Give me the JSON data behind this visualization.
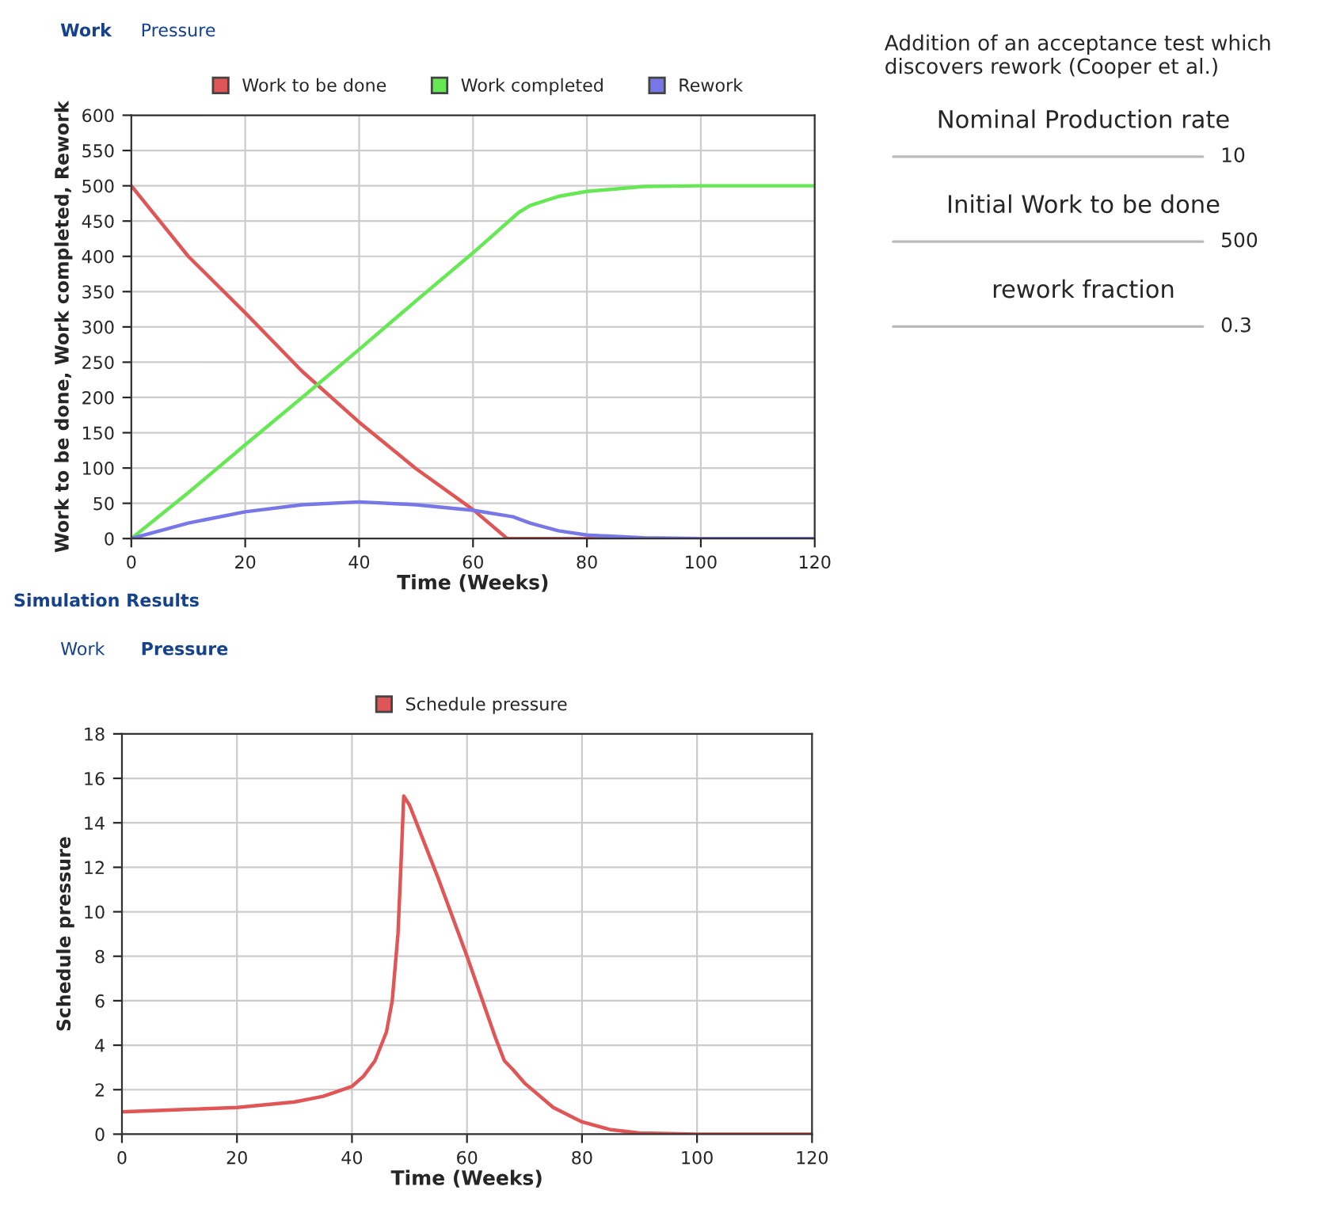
{
  "chart_data": [
    {
      "type": "line",
      "annotations": [
        "Work",
        "Pressure"
      ],
      "xlabel": "Time (Weeks)",
      "ylabel": "Work to be done, Work completed, Rework",
      "xlim": [
        0,
        120
      ],
      "xticks": [
        0,
        20,
        40,
        60,
        80,
        100,
        120
      ],
      "ylim": [
        0,
        600
      ],
      "yticks": [
        0,
        50,
        100,
        150,
        200,
        250,
        300,
        350,
        400,
        450,
        500,
        550,
        600
      ],
      "grid": true,
      "legend": "top",
      "series": [
        {
          "name": "Work to be done",
          "color": "#e05555",
          "x": [
            0,
            10,
            20,
            30,
            40,
            50,
            60,
            66,
            80,
            100,
            120
          ],
          "values": [
            500,
            400,
            320,
            237,
            165,
            99,
            41,
            0,
            0,
            0,
            0
          ]
        },
        {
          "name": "Work completed",
          "color": "#66e855",
          "x": [
            0,
            10,
            20,
            30,
            40,
            50,
            60,
            68,
            70,
            75,
            80,
            90,
            100,
            120
          ],
          "values": [
            0,
            65,
            133,
            200,
            268,
            337,
            405,
            462,
            472,
            485,
            492,
            499,
            500,
            500
          ]
        },
        {
          "name": "Rework",
          "color": "#7777e8",
          "x": [
            0,
            10,
            20,
            30,
            40,
            50,
            60,
            67,
            70,
            75,
            80,
            90,
            100,
            120
          ],
          "values": [
            0,
            22,
            38,
            48,
            52,
            48,
            40,
            31,
            22,
            11,
            5,
            1,
            0,
            0
          ]
        }
      ]
    },
    {
      "type": "line",
      "annotations": [
        "Simulation Results",
        "Work",
        "Pressure"
      ],
      "xlabel": "Time (Weeks)",
      "ylabel": "Schedule pressure",
      "xlim": [
        0,
        120
      ],
      "xticks": [
        0,
        20,
        40,
        60,
        80,
        100,
        120
      ],
      "ylim": [
        0,
        18
      ],
      "yticks": [
        0,
        2,
        4,
        6,
        8,
        10,
        12,
        14,
        16,
        18
      ],
      "grid": true,
      "legend": "top",
      "series": [
        {
          "name": "Schedule pressure",
          "color": "#e05555",
          "x": [
            0,
            10,
            20,
            30,
            35,
            40,
            42,
            44,
            46,
            47,
            48,
            48.5,
            49,
            50,
            55,
            60,
            65,
            66.5,
            68,
            70,
            75,
            80,
            85,
            90,
            100,
            120
          ],
          "values": [
            1.0,
            1.1,
            1.2,
            1.45,
            1.7,
            2.15,
            2.6,
            3.3,
            4.6,
            6,
            9,
            12,
            15.2,
            14.8,
            11.5,
            8.0,
            4.3,
            3.3,
            2.9,
            2.3,
            1.2,
            0.55,
            0.2,
            0.05,
            0,
            0
          ]
        }
      ]
    },
    {
      "type": "other",
      "annotations": [
        "Addition of an acceptance test which discovers rework (Cooper et al.)",
        "Nominal Production rate",
        "10",
        "Initial Work to be done",
        "500",
        "rework fraction",
        "0.3"
      ]
    }
  ]
}
